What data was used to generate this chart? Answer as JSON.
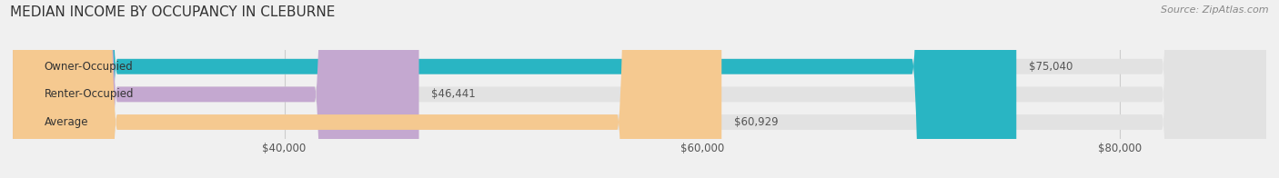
{
  "title": "MEDIAN INCOME BY OCCUPANCY IN CLEBURNE",
  "source": "Source: ZipAtlas.com",
  "categories": [
    "Owner-Occupied",
    "Renter-Occupied",
    "Average"
  ],
  "values": [
    75040,
    46441,
    60929
  ],
  "bar_colors": [
    "#29b5c3",
    "#c4a8d0",
    "#f5c990"
  ],
  "value_labels": [
    "$75,040",
    "$46,441",
    "$60,929"
  ],
  "xlim": [
    27000,
    87000
  ],
  "xticks": [
    40000,
    60000,
    80000
  ],
  "xtick_labels": [
    "$40,000",
    "$60,000",
    "$80,000"
  ],
  "title_fontsize": 11,
  "source_fontsize": 8,
  "label_fontsize": 8.5,
  "tick_fontsize": 8.5,
  "bar_height": 0.55,
  "background_color": "#f0f0f0",
  "figsize": [
    14.06,
    1.96
  ],
  "dpi": 100
}
